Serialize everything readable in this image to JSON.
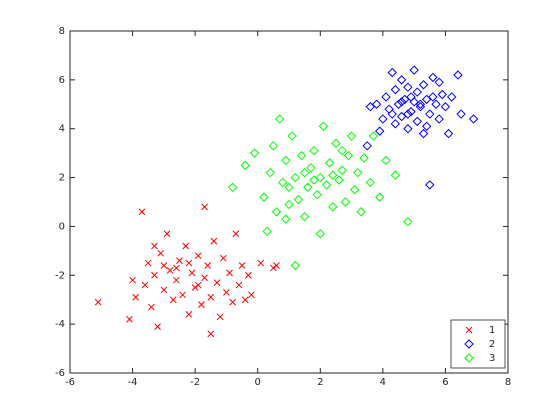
{
  "chart_data": {
    "type": "scatter",
    "xlim": [
      -6,
      8
    ],
    "ylim": [
      -6,
      8
    ],
    "xticks": [
      -6,
      -4,
      -2,
      0,
      2,
      4,
      6,
      8
    ],
    "yticks": [
      -6,
      -4,
      -2,
      0,
      2,
      4,
      6,
      8
    ],
    "legend": "lower right",
    "series": [
      {
        "name": "1",
        "color": "#ff0000",
        "marker": "x",
        "x": [
          -5.1,
          -4.1,
          -3.9,
          -3.7,
          -3.6,
          -3.5,
          -3.4,
          -3.3,
          -3.2,
          -3.1,
          -3.0,
          -2.9,
          -2.8,
          -2.7,
          -2.6,
          -2.5,
          -2.4,
          -2.3,
          -2.2,
          -2.1,
          -2.0,
          -1.9,
          -1.8,
          -1.7,
          -1.7,
          -1.6,
          -1.5,
          -1.5,
          -1.4,
          -1.3,
          -1.2,
          -1.1,
          -1.0,
          -0.9,
          -0.8,
          -0.7,
          -0.6,
          -0.5,
          -0.4,
          -0.3,
          -0.2,
          0.1,
          0.6,
          0.5,
          -2.6,
          -3.0,
          -2.2,
          -1.9,
          -4.0,
          -3.3
        ],
        "values": [
          -3.1,
          -3.8,
          -2.9,
          0.6,
          -2.4,
          -1.5,
          -3.3,
          -2.0,
          -4.1,
          -1.1,
          -2.6,
          -0.3,
          -1.8,
          -3.0,
          -2.2,
          -1.4,
          -2.8,
          -0.8,
          -3.6,
          -1.9,
          -2.5,
          -1.2,
          -3.2,
          0.8,
          -2.1,
          -1.6,
          -4.4,
          -2.9,
          -0.6,
          -2.3,
          -3.7,
          -1.3,
          -2.7,
          -1.9,
          -3.1,
          -0.3,
          -2.4,
          -1.6,
          -3.0,
          -2.0,
          -2.8,
          -1.5,
          -1.6,
          -1.7,
          -1.7,
          -1.6,
          -1.5,
          -2.4,
          -2.2,
          -0.8
        ]
      },
      {
        "name": "2",
        "color": "#0000ff",
        "marker": "diamond",
        "x": [
          3.5,
          3.9,
          3.8,
          4.0,
          4.1,
          4.2,
          4.3,
          4.4,
          4.4,
          4.5,
          4.6,
          4.6,
          4.7,
          4.8,
          4.8,
          4.9,
          5.0,
          5.0,
          5.1,
          5.1,
          5.2,
          5.3,
          5.3,
          5.4,
          5.5,
          5.5,
          5.6,
          5.7,
          5.8,
          5.9,
          6.0,
          6.1,
          6.2,
          6.4,
          6.5,
          6.9,
          4.9,
          5.2,
          4.6,
          5.6,
          4.3,
          5.8,
          3.6,
          4.8,
          5.4
        ],
        "values": [
          3.3,
          3.9,
          5.0,
          4.4,
          5.3,
          4.8,
          6.3,
          4.2,
          5.6,
          5.0,
          4.5,
          6.0,
          5.2,
          4.0,
          5.7,
          4.7,
          5.1,
          6.4,
          4.3,
          5.5,
          4.9,
          5.8,
          3.8,
          5.2,
          1.7,
          4.6,
          6.1,
          5.0,
          4.4,
          5.4,
          4.9,
          3.8,
          5.3,
          6.2,
          4.6,
          4.4,
          5.3,
          5.0,
          5.1,
          5.3,
          4.6,
          5.9,
          4.9,
          4.6,
          4.1
        ]
      },
      {
        "name": "3",
        "color": "#00ff00",
        "marker": "diamond",
        "x": [
          -0.8,
          -0.4,
          -0.1,
          0.2,
          0.3,
          0.4,
          0.5,
          0.6,
          0.7,
          0.8,
          0.9,
          1.0,
          1.1,
          1.2,
          1.2,
          1.3,
          1.4,
          1.5,
          1.6,
          1.7,
          1.8,
          1.9,
          2.0,
          2.0,
          2.1,
          2.2,
          2.3,
          2.4,
          2.5,
          2.6,
          2.7,
          2.8,
          2.9,
          3.0,
          3.1,
          3.2,
          3.3,
          3.4,
          3.6,
          3.7,
          3.9,
          4.1,
          4.4,
          4.8,
          1.5,
          1.8,
          2.4,
          1.0,
          2.7,
          0.9
        ],
        "values": [
          1.6,
          2.5,
          3.0,
          1.2,
          -0.2,
          2.2,
          3.3,
          0.6,
          4.4,
          1.8,
          2.7,
          0.9,
          3.7,
          -1.6,
          2.0,
          1.1,
          2.9,
          0.4,
          1.6,
          2.4,
          3.1,
          1.3,
          2.0,
          -0.3,
          4.1,
          1.7,
          2.6,
          0.8,
          3.4,
          1.9,
          2.3,
          1.0,
          2.9,
          3.7,
          1.5,
          2.2,
          0.6,
          2.8,
          1.8,
          3.7,
          1.2,
          2.7,
          2.1,
          0.2,
          2.2,
          1.9,
          2.1,
          1.6,
          3.1,
          0.3
        ]
      }
    ]
  }
}
